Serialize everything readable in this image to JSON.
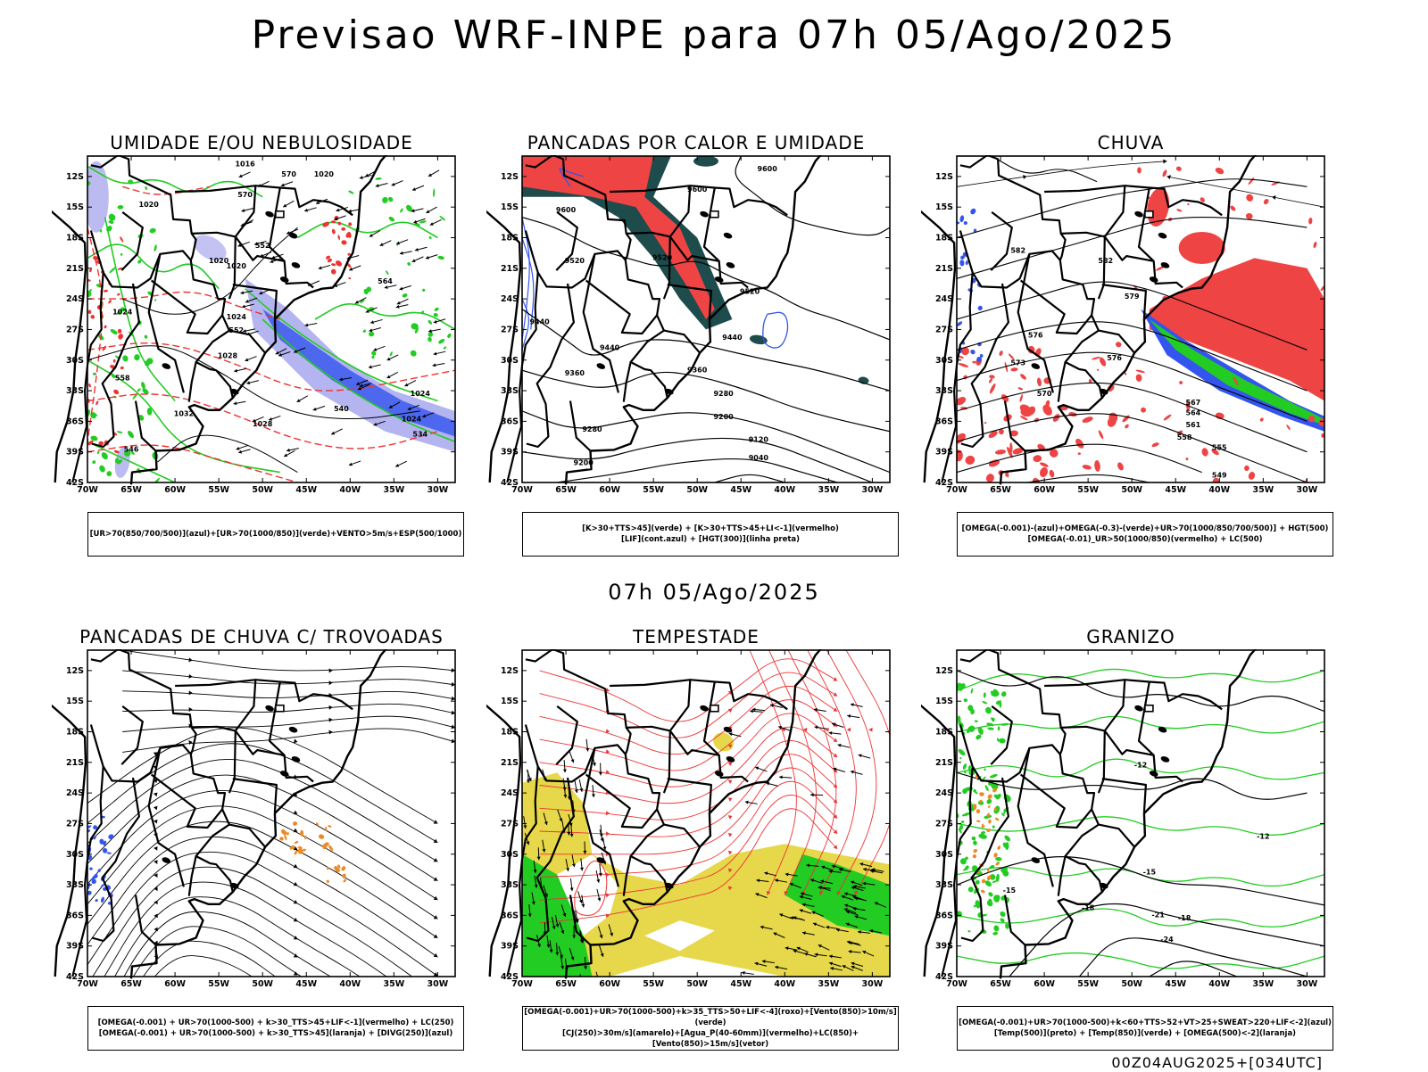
{
  "title": "Previsao WRF-INPE  para 07h 05/Ago/2025",
  "mid_date": "07h 05/Ago/2025",
  "footer": "00Z04AUG2025+[034UTC]",
  "axes": {
    "lat_labels": [
      "12S",
      "15S",
      "18S",
      "21S",
      "24S",
      "27S",
      "30S",
      "33S",
      "36S",
      "39S",
      "42S"
    ],
    "lon_labels": [
      "70W",
      "65W",
      "60W",
      "55W",
      "50W",
      "45W",
      "40W",
      "35W",
      "30W"
    ]
  },
  "colors": {
    "green": "#22cc22",
    "red_fill": "#ee4444",
    "red_line": "#ee3333",
    "blue": "#3355ee",
    "light_blue": "#b4b4f0",
    "dark_teal": "#1e4b4b",
    "orange": "#ee8822",
    "yellow": "#e6d84a",
    "black": "#000000"
  },
  "panels": [
    {
      "id": "umidade",
      "title": "UMIDADE E/OU NEBULOSIDADE",
      "legend": [
        "[UR>70(850/700/500)](azul)+[UR>70(1000/850)](verde)+VENTO>5m/s+ESP(500/1000)"
      ],
      "labels": [
        "1016",
        "1020",
        "1020",
        "1020",
        "1020",
        "1024",
        "1024",
        "1028",
        "1032",
        "1028",
        "1024",
        "1024",
        "570",
        "570",
        "564",
        "552",
        "546",
        "540",
        "534",
        "552",
        "558"
      ]
    },
    {
      "id": "pancadas-calor",
      "title": "PANCADAS POR CALOR E UMIDADE",
      "legend": [
        "[K>30+TTS>45](verde)  +  [K>30+TTS>45+LI<-1](vermelho)",
        "[LIF](cont.azul)  +  [HGT(300)](linha preta)"
      ],
      "labels": [
        "9600",
        "9600",
        "9600",
        "9520",
        "9520",
        "9520",
        "9440",
        "9440",
        "9440",
        "9360",
        "9360",
        "9280",
        "9280",
        "9200",
        "9200",
        "9120",
        "9040"
      ]
    },
    {
      "id": "chuva",
      "title": "CHUVA",
      "legend": [
        "[OMEGA(-0.001)-(azul)+OMEGA(-0.3)-(verde)+UR>70(1000/850/700/500)]  +  HGT(500)",
        "[OMEGA(-0.01)_UR>50(1000/850)(vermelho) + LC(500)"
      ],
      "labels": [
        "582",
        "579",
        "576",
        "573",
        "570",
        "567",
        "564",
        "561",
        "558",
        "555",
        "549",
        "576",
        "582"
      ]
    },
    {
      "id": "pancadas-trovoadas",
      "title": "PANCADAS DE CHUVA C/ TROVOADAS",
      "legend": [
        "[OMEGA(-0.001) + UR>70(1000-500) + k>30_TTS>45+LIF<-1](vermelho) + LC(250)",
        "[OMEGA(-0.001) + UR>70(1000-500) + k>30_TTS>45](laranja) + [DIVG(250)](azul)"
      ],
      "labels": []
    },
    {
      "id": "tempestade",
      "title": "TEMPESTADE",
      "legend": [
        "[OMEGA(-0.001)+UR>70(1000-500)+k>35_TTS>50+LIF<-4](roxo)+[Vento(850)>10m/s](verde)",
        "[CJ(250)>30m/s](amarelo)+[Agua_P(40-60mm)](vermelho)+LC(850)+[Vento(850)>15m/s](vetor)"
      ],
      "labels": []
    },
    {
      "id": "granizo",
      "title": "GRANIZO",
      "legend": [
        "[OMEGA(-0.001)+UR>70(1000-500)+k<60+TTS>52+VT>25+SWEAT>220+LIF<-2](azul)",
        "[Temp(500)](preto) + [Temp(850)](verde) + [OMEGA(500)<-2](laranja)"
      ],
      "labels": [
        "-12",
        "-12",
        "-15",
        "-15",
        "-18",
        "-18",
        "-21",
        "-24"
      ]
    }
  ]
}
